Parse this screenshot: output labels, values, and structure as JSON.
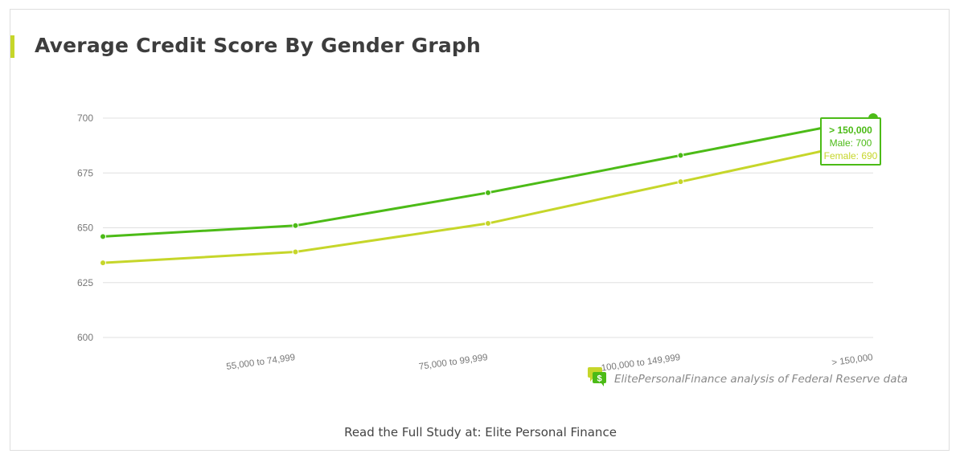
{
  "header": {
    "title": "Average Credit Score By Gender Graph"
  },
  "colors": {
    "male": "#4cbb17",
    "female": "#c6d62a",
    "accent_bar": "#c6d62a",
    "grid": "#e0e0e0"
  },
  "tooltip": {
    "title": "> 150,000",
    "male_label": "Male: 700",
    "female_label": "Female: 690"
  },
  "source": {
    "icon": "chat-dollar-icon",
    "text": "ElitePersonalFinance analysis of Federal Reserve data"
  },
  "footer": {
    "text": "Read the Full Study at: Elite Personal Finance"
  },
  "chart_data": {
    "type": "line",
    "title": "Average Credit Score By Gender Graph",
    "xlabel": "",
    "ylabel": "",
    "categories": [
      "",
      "55,000 to 74,999",
      "75,000 to 99,999",
      "100,000 to 149,999",
      "> 150,000"
    ],
    "series": [
      {
        "name": "Male",
        "color": "#4cbb17",
        "values": [
          646,
          651,
          666,
          683,
          700
        ]
      },
      {
        "name": "Female",
        "color": "#c6d62a",
        "values": [
          634,
          639,
          652,
          671,
          690
        ]
      }
    ],
    "yticks": [
      600,
      625,
      650,
      675,
      700
    ],
    "ylim": [
      600,
      700
    ],
    "grid": true,
    "legend": "none",
    "annotations": [
      "Tooltip at > 150,000: Male: 700, Female: 690"
    ]
  }
}
